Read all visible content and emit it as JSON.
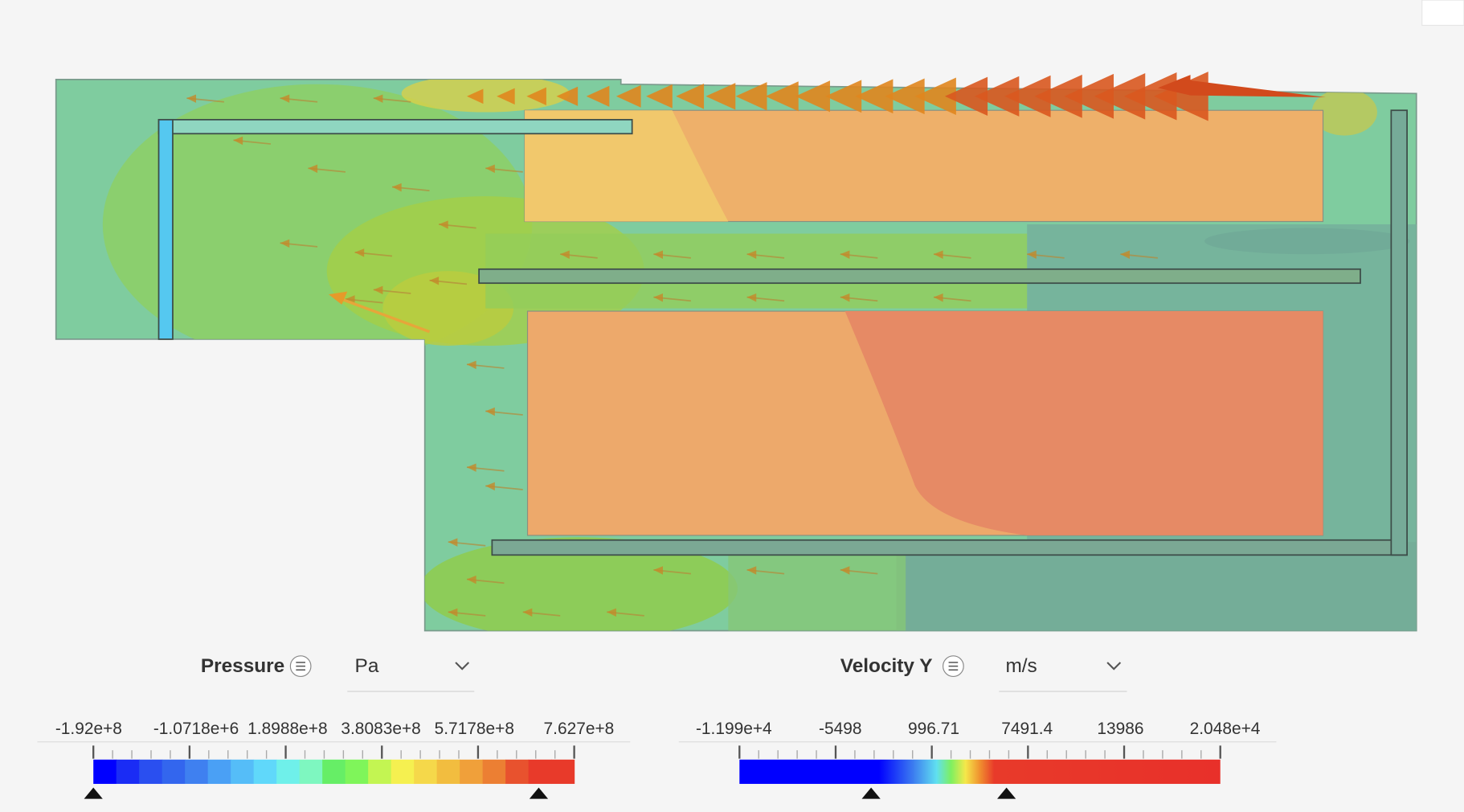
{
  "legends": [
    {
      "label": "Pressure",
      "unit": "Pa",
      "ticks": [
        "-1.92e+8",
        "-1.0718e+6",
        "1.8988e+8",
        "3.8083e+8",
        "5.7178e+8",
        "7.627e+8"
      ]
    },
    {
      "label": "Velocity Y",
      "unit": "m/s",
      "ticks": [
        "-1.199e+4",
        "-5498",
        "996.71",
        "7491.4",
        "13986",
        "2.048e+4"
      ]
    }
  ]
}
